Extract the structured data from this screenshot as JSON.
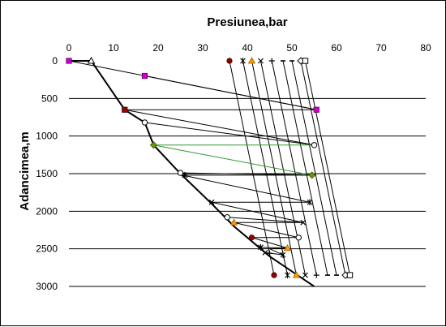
{
  "chart_data": {
    "type": "line",
    "title": "",
    "xlabel": "Presiunea,bar",
    "ylabel": "Adancimea,m",
    "x_axis_position": "top",
    "y_axis_inverted": true,
    "xlim": [
      0,
      80
    ],
    "ylim": [
      0,
      3000
    ],
    "x_ticks": [
      "0",
      "10",
      "20",
      "30",
      "40",
      "50",
      "60",
      "70",
      "80"
    ],
    "y_ticks": [
      "0",
      "500",
      "1000",
      "1500",
      "2000",
      "2500",
      "3000"
    ],
    "gridlines": "horizontal",
    "legend": "none",
    "colors": {
      "pressure_curve": "#000000",
      "marker_magenta": "#cc00cc",
      "marker_olive": "#669900",
      "marker_orange": "#ff9900",
      "marker_darkred": "#990000",
      "connector_green": "#339933",
      "grid": "#000000"
    },
    "series": [
      {
        "role": "well-pressure-curve",
        "x": [
          0,
          5,
          12.5,
          17,
          19,
          25,
          32,
          37,
          45,
          55
        ],
        "y": [
          0,
          0,
          650,
          820,
          1120,
          1500,
          1900,
          2200,
          2600,
          3000
        ]
      }
    ],
    "vertical_lines": [
      {
        "x_top": 36,
        "x_bottom": 46,
        "marker": "circle",
        "color": "#990000"
      },
      {
        "x_top": 39,
        "x_bottom": 49,
        "marker": "star",
        "color": "#000000"
      },
      {
        "x_top": 41,
        "x_bottom": 51,
        "marker": "triangle",
        "color": "#ff9900"
      },
      {
        "x_top": 43,
        "x_bottom": 53,
        "marker": "x",
        "color": "#000000"
      },
      {
        "x_top": 45.5,
        "x_bottom": 55.5,
        "marker": "plus",
        "color": "#000000"
      },
      {
        "x_top": 48,
        "x_bottom": 58,
        "marker": "dash",
        "color": "#000000"
      },
      {
        "x_top": 50,
        "x_bottom": 60,
        "marker": "dash",
        "color": "#000000"
      },
      {
        "x_top": 52,
        "x_bottom": 62,
        "marker": "diamond",
        "color": "#000000"
      },
      {
        "x_top": 53,
        "x_bottom": 63,
        "marker": "square",
        "color": "#000000"
      }
    ],
    "zigzag_segments": [
      {
        "from": [
          0,
          0
        ],
        "to": [
          55.5,
          650
        ],
        "color": "#000000",
        "marker": "square-magenta"
      },
      {
        "from": [
          17,
          200
        ],
        "to": [
          55.5,
          650
        ],
        "color": "#000000",
        "marker": "square-magenta"
      },
      {
        "from": [
          12.5,
          650
        ],
        "to": [
          55.5,
          650
        ],
        "color": "#000000",
        "marker": "square-darkred"
      },
      {
        "from": [
          12.5,
          650
        ],
        "to": [
          55,
          1120
        ],
        "color": "#000000"
      },
      {
        "from": [
          17,
          820
        ],
        "to": [
          55,
          1120
        ],
        "color": "#000000"
      },
      {
        "from": [
          19,
          1120
        ],
        "to": [
          55,
          1120
        ],
        "color": "#339933"
      },
      {
        "from": [
          19,
          1120
        ],
        "to": [
          54.5,
          1520
        ],
        "color": "#339933"
      },
      {
        "from": [
          25,
          1490
        ],
        "to": [
          54.5,
          1520
        ],
        "color": "#000000"
      },
      {
        "from": [
          25.5,
          1520
        ],
        "to": [
          54.5,
          1520
        ],
        "color": "#000000"
      },
      {
        "from": [
          25.5,
          1520
        ],
        "to": [
          54,
          1880
        ],
        "color": "#000000"
      },
      {
        "from": [
          32,
          1880
        ],
        "to": [
          54,
          1880
        ],
        "color": "#000000"
      },
      {
        "from": [
          32,
          1880
        ],
        "to": [
          52.5,
          2150
        ],
        "color": "#000000"
      },
      {
        "from": [
          35.5,
          2080
        ],
        "to": [
          52.5,
          2150
        ],
        "color": "#000000"
      },
      {
        "from": [
          37,
          2150
        ],
        "to": [
          52.5,
          2150
        ],
        "color": "#000000"
      },
      {
        "from": [
          37,
          2150
        ],
        "to": [
          51.5,
          2350
        ],
        "color": "#000000"
      },
      {
        "from": [
          41,
          2350
        ],
        "to": [
          51.5,
          2350
        ],
        "color": "#000000"
      },
      {
        "from": [
          41,
          2350
        ],
        "to": [
          49,
          2490
        ],
        "color": "#000000"
      },
      {
        "from": [
          43,
          2480
        ],
        "to": [
          49,
          2490
        ],
        "color": "#000000"
      },
      {
        "from": [
          45,
          2500
        ],
        "to": [
          49,
          2490
        ],
        "color": "#000000"
      },
      {
        "from": [
          45,
          2500
        ],
        "to": [
          48,
          2580
        ],
        "color": "#000000"
      },
      {
        "from": [
          44,
          2550
        ],
        "to": [
          48,
          2580
        ],
        "color": "#000000"
      }
    ],
    "curve_markers": [
      {
        "x": 5,
        "y": 0,
        "shape": "triangle-open"
      },
      {
        "x": 12.5,
        "y": 650,
        "shape": "square-darkred"
      },
      {
        "x": 17,
        "y": 820,
        "shape": "circle-open"
      },
      {
        "x": 19,
        "y": 1120,
        "shape": "diamond-olive"
      },
      {
        "x": 25,
        "y": 1490,
        "shape": "circle-open"
      },
      {
        "x": 26,
        "y": 1520,
        "shape": "star"
      },
      {
        "x": 32,
        "y": 1880,
        "shape": "x"
      },
      {
        "x": 35.5,
        "y": 2080,
        "shape": "circle-open"
      },
      {
        "x": 37,
        "y": 2150,
        "shape": "triangle-orange"
      },
      {
        "x": 41,
        "y": 2350,
        "shape": "circle-darkred"
      },
      {
        "x": 43,
        "y": 2480,
        "shape": "star"
      },
      {
        "x": 44,
        "y": 2550,
        "shape": "x"
      },
      {
        "x": 45,
        "y": 2560,
        "shape": "plus"
      }
    ],
    "end_markers": [
      {
        "x": 0,
        "y": 0,
        "shape": "square-magenta"
      },
      {
        "x": 17,
        "y": 200,
        "shape": "square-magenta"
      },
      {
        "x": 55.5,
        "y": 650,
        "shape": "square-magenta"
      },
      {
        "x": 55,
        "y": 1120,
        "shape": "circle-open"
      },
      {
        "x": 54.5,
        "y": 1520,
        "shape": "diamond-olive"
      },
      {
        "x": 54,
        "y": 1880,
        "shape": "star"
      },
      {
        "x": 52.5,
        "y": 2150,
        "shape": "x"
      },
      {
        "x": 51.5,
        "y": 2350,
        "shape": "circle-open"
      },
      {
        "x": 49,
        "y": 2490,
        "shape": "triangle-orange"
      },
      {
        "x": 48,
        "y": 2580,
        "shape": "star"
      }
    ]
  }
}
